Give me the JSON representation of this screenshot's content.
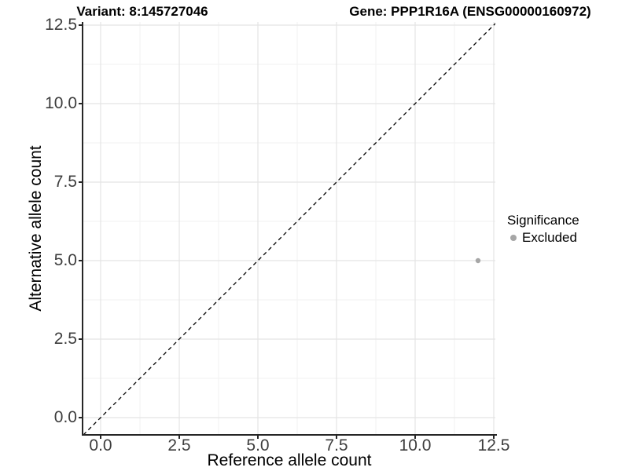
{
  "titles": {
    "variant": "Variant: 8:145727046",
    "gene": "Gene: PPP1R16A (ENSG00000160972)"
  },
  "chart_data": {
    "type": "scatter",
    "xlabel": "Reference allele count",
    "ylabel": "Alternative allele count",
    "x_axis": {
      "tick_values": [
        0,
        2.5,
        5,
        7.5,
        10,
        12.5
      ],
      "tick_labels": [
        "0.0",
        "2.5",
        "5.0",
        "7.5",
        "10.0",
        "12.5"
      ],
      "minor_step": 1.25
    },
    "y_axis": {
      "tick_values": [
        0,
        2.5,
        5,
        7.5,
        10,
        12.5
      ],
      "tick_labels": [
        "0.0",
        "2.5",
        "5.0",
        "7.5",
        "10.0",
        "12.5"
      ],
      "minor_step": 1.25
    },
    "xlim": [
      -0.55,
      12.55
    ],
    "ylim": [
      -0.55,
      12.6
    ],
    "grid": "major+minor",
    "reference_line": {
      "type": "identity",
      "slope": 1,
      "intercept": 0,
      "style": "dashed",
      "color": "#000000"
    },
    "series": [
      {
        "name": "Excluded",
        "color": "#a6a6a6",
        "points": [
          {
            "x": 12,
            "y": 5
          }
        ]
      }
    ],
    "legend": {
      "title": "Significance",
      "position": "right",
      "items": [
        {
          "label": "Excluded",
          "color": "#a6a6a6"
        }
      ]
    }
  },
  "colors": {
    "grid_major": "#e4e4e4",
    "grid_minor": "#f2f2f2",
    "axis_line": "#262626",
    "tick_label": "#3d3d3d",
    "point": "#a6a6a6"
  }
}
